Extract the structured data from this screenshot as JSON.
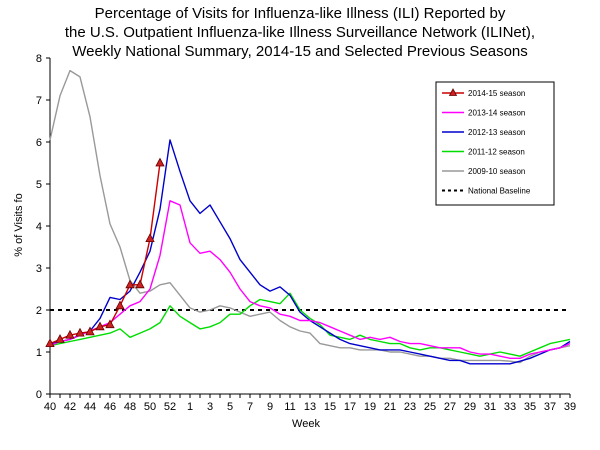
{
  "chart_data": {
    "type": "line",
    "title_lines": [
      "Percentage of Visits for Influenza-like Illness (ILI) Reported by",
      "the U.S. Outpatient Influenza-like Illness Surveillance Network (ILINet),",
      "Weekly National Summary, 2014-15 and Selected Previous Seasons"
    ],
    "xlabel": "Week",
    "ylabel": "% of Visits fo",
    "ylim": [
      0,
      8
    ],
    "yticks": [
      0,
      1,
      2,
      3,
      4,
      5,
      6,
      7,
      8
    ],
    "x_tick_labels": [
      "40",
      "42",
      "44",
      "46",
      "48",
      "50",
      "52",
      "1",
      "3",
      "5",
      "7",
      "9",
      "11",
      "13",
      "15",
      "17",
      "19",
      "21",
      "23",
      "25",
      "27",
      "29",
      "31",
      "33",
      "35",
      "37",
      "39"
    ],
    "n_weeks": 53,
    "grid": false,
    "legend_position": "top-right",
    "baseline": {
      "name": "National Baseline",
      "value": 2.0,
      "color": "#000000"
    },
    "series": [
      {
        "name": "2014-15 season",
        "color": "#cc0000",
        "marker": "triangle",
        "values": [
          1.2,
          1.3,
          1.4,
          1.45,
          1.48,
          1.6,
          1.65,
          2.1,
          2.6,
          2.6,
          3.7,
          5.5
        ]
      },
      {
        "name": "2013-14 season",
        "color": "#ff00ff",
        "marker": "none",
        "values": [
          1.15,
          1.25,
          1.3,
          1.4,
          1.5,
          1.6,
          1.7,
          1.9,
          2.1,
          2.2,
          2.5,
          3.3,
          4.6,
          4.5,
          3.6,
          3.35,
          3.4,
          3.2,
          2.9,
          2.5,
          2.2,
          2.1,
          2.05,
          1.9,
          1.85,
          1.75,
          1.75,
          1.7,
          1.6,
          1.5,
          1.4,
          1.3,
          1.35,
          1.3,
          1.35,
          1.25,
          1.2,
          1.2,
          1.15,
          1.1,
          1.1,
          1.1,
          1.0,
          0.95,
          0.95,
          0.9,
          0.85,
          0.85,
          0.95,
          1.0,
          1.05,
          1.1,
          1.2
        ]
      },
      {
        "name": "2012-13 season",
        "color": "#0000cc",
        "marker": "none",
        "values": [
          1.2,
          1.25,
          1.3,
          1.4,
          1.5,
          1.8,
          2.3,
          2.25,
          2.45,
          2.9,
          3.4,
          4.4,
          6.05,
          5.3,
          4.6,
          4.3,
          4.5,
          4.1,
          3.7,
          3.2,
          2.9,
          2.6,
          2.45,
          2.55,
          2.35,
          1.95,
          1.75,
          1.6,
          1.45,
          1.3,
          1.2,
          1.15,
          1.1,
          1.05,
          1.05,
          1.05,
          1.0,
          0.95,
          0.9,
          0.85,
          0.8,
          0.8,
          0.72,
          0.72,
          0.72,
          0.72,
          0.72,
          0.78,
          0.85,
          0.95,
          1.05,
          1.1,
          1.25
        ]
      },
      {
        "name": "2011-12 season",
        "color": "#00dd00",
        "marker": "none",
        "values": [
          1.15,
          1.2,
          1.25,
          1.3,
          1.35,
          1.4,
          1.45,
          1.55,
          1.35,
          1.45,
          1.55,
          1.7,
          2.1,
          1.85,
          1.7,
          1.55,
          1.6,
          1.7,
          1.9,
          1.9,
          2.1,
          2.25,
          2.2,
          2.15,
          2.4,
          2.0,
          1.8,
          1.65,
          1.4,
          1.35,
          1.3,
          1.4,
          1.3,
          1.25,
          1.2,
          1.2,
          1.1,
          1.05,
          1.1,
          1.1,
          1.05,
          1.0,
          0.95,
          0.9,
          0.95,
          1.0,
          0.95,
          0.9,
          1.0,
          1.1,
          1.2,
          1.25,
          1.3
        ]
      },
      {
        "name": "2009-10 season",
        "color": "#999999",
        "marker": "none",
        "values": [
          6.05,
          7.1,
          7.7,
          7.55,
          6.6,
          5.2,
          4.05,
          3.5,
          2.7,
          2.4,
          2.45,
          2.6,
          2.65,
          2.35,
          2.05,
          1.95,
          2.0,
          2.1,
          2.05,
          1.95,
          1.85,
          1.9,
          1.95,
          1.75,
          1.6,
          1.5,
          1.45,
          1.2,
          1.15,
          1.1,
          1.1,
          1.05,
          1.05,
          1.05,
          1.0,
          1.0,
          0.95,
          0.9,
          0.9,
          0.85,
          0.85,
          0.8,
          0.8,
          0.8,
          0.8,
          0.8,
          0.78,
          0.75,
          0.9,
          1.0,
          1.05,
          1.1,
          1.15
        ]
      }
    ]
  }
}
